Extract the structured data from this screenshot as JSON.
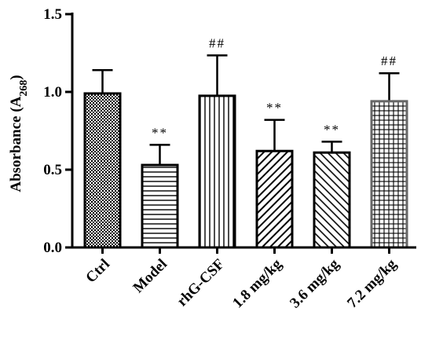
{
  "chart_data": {
    "type": "bar",
    "categories": [
      "Ctrl",
      "Model",
      "rhG-CSF",
      "1.8 mg/kg",
      "3.6 mg/kg",
      "7.2 mg/kg"
    ],
    "values": [
      0.99,
      0.53,
      0.975,
      0.62,
      0.61,
      0.94
    ],
    "errors": [
      0.15,
      0.13,
      0.26,
      0.2,
      0.07,
      0.18
    ],
    "annotations": [
      "",
      "**",
      "##",
      "**",
      "**",
      "##"
    ],
    "patterns": [
      "crosshatch-fine",
      "horizontal-lines",
      "vertical-lines",
      "diagonal-forward",
      "diagonal-back",
      "grid"
    ],
    "bar_stroke_colors": [
      "#000000",
      "#000000",
      "#000000",
      "#000000",
      "#000000",
      "#666666"
    ],
    "ylabel_main": "Absorbance  (A",
    "ylabel_sub": "268",
    "ylabel_close": ")",
    "ylim": [
      0,
      1.5
    ],
    "yticks": [
      "0.0",
      "0.5",
      "1.0",
      "1.5"
    ],
    "grid": false
  }
}
